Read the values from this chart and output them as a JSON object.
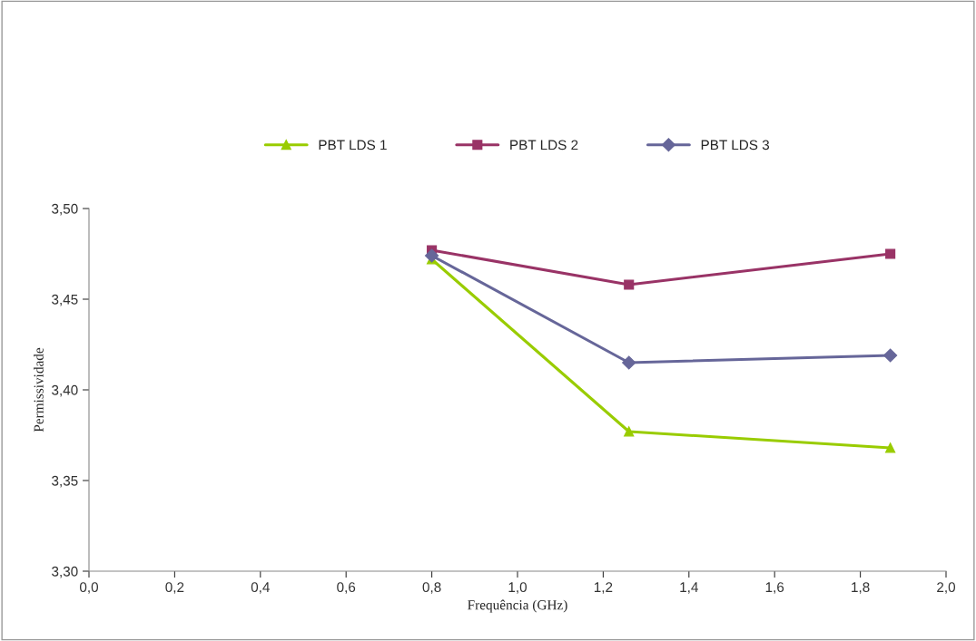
{
  "chart_data": {
    "type": "line",
    "xlabel": "Frequência (GHz)",
    "ylabel": "Permissividade",
    "x": [
      0.8,
      1.26,
      1.87
    ],
    "series": [
      {
        "name": "PBT LDS 1",
        "color": "#99cc00",
        "marker": "triangle",
        "values": [
          3.472,
          3.377,
          3.368
        ]
      },
      {
        "name": "PBT LDS 2",
        "color": "#993366",
        "marker": "square",
        "values": [
          3.477,
          3.458,
          3.475
        ]
      },
      {
        "name": "PBT LDS 3",
        "color": "#666699",
        "marker": "diamond",
        "values": [
          3.474,
          3.415,
          3.419
        ]
      }
    ],
    "xlim": [
      0,
      2
    ],
    "xticks": [
      {
        "value": 0,
        "label": "0,0"
      },
      {
        "value": 0.2,
        "label": "0,2"
      },
      {
        "value": 0.4,
        "label": "0,4"
      },
      {
        "value": 0.6,
        "label": "0,6"
      },
      {
        "value": 0.8,
        "label": "0,8"
      },
      {
        "value": 1.0,
        "label": "1,0"
      },
      {
        "value": 1.2,
        "label": "1,2"
      },
      {
        "value": 1.4,
        "label": "1,4"
      },
      {
        "value": 1.6,
        "label": "1,6"
      },
      {
        "value": 1.8,
        "label": "1,8"
      },
      {
        "value": 2.0,
        "label": "2,0"
      }
    ],
    "ylim": [
      3.3,
      3.5
    ],
    "yticks": [
      {
        "value": 3.3,
        "label": "3,30"
      },
      {
        "value": 3.35,
        "label": "3,35"
      },
      {
        "value": 3.4,
        "label": "3,40"
      },
      {
        "value": 3.45,
        "label": "3,45"
      },
      {
        "value": 3.5,
        "label": "3,50"
      }
    ],
    "grid": false,
    "legend": "top",
    "line_style": "solid"
  }
}
